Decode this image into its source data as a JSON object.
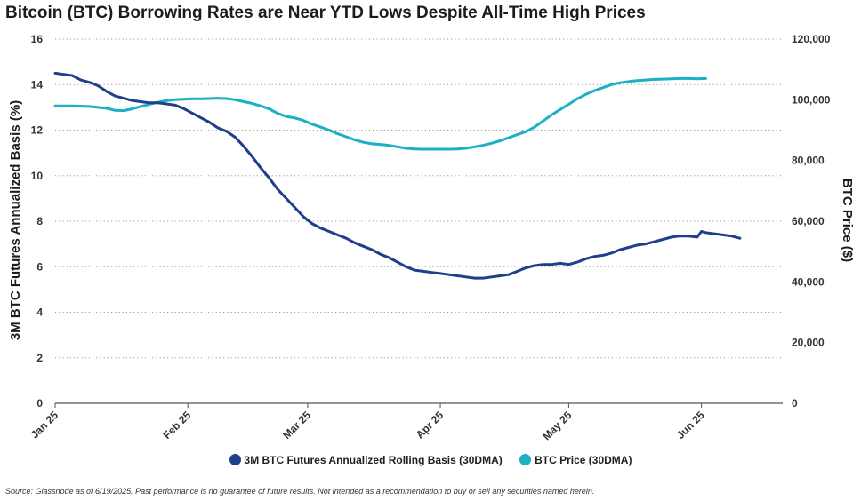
{
  "title": "Bitcoin (BTC) Borrowing Rates are Near YTD Lows Despite All-Time High Prices",
  "source": "Source: Glassnode as of 6/19/2025. Past performance is no guarantee of future results. Not intended as a recommendation to buy or sell any securities named herein.",
  "colors": {
    "basis": "#1f3f8a",
    "price": "#1bb0c4",
    "grid": "#9a9a9a",
    "axis": "#555555"
  },
  "chart_data": {
    "type": "line",
    "title": "Bitcoin (BTC) Borrowing Rates are Near YTD Lows Despite All-Time High Prices",
    "ylabel": "3M BTC Futures Annualized Basis (%)",
    "y2label": "BTC Price ($)",
    "ylim": [
      0,
      16
    ],
    "y2lim": [
      0,
      120000
    ],
    "yticks": [
      "0",
      "2",
      "4",
      "6",
      "8",
      "10",
      "12",
      "14",
      "16"
    ],
    "y2ticks": [
      "0",
      "20,000",
      "40,000",
      "60,000",
      "80,000",
      "100,000",
      "120,000"
    ],
    "xticks": [
      "Jan 25",
      "Feb 25",
      "Mar 25",
      "Apr 25",
      "May 25",
      "Jun 25"
    ],
    "x_range_days": [
      0,
      170
    ],
    "grid": "horizontal dotted",
    "legend_position": "bottom",
    "series": [
      {
        "name": "3M BTC Futures Annualized Rolling Basis (30DMA)",
        "axis": "left",
        "points": [
          [
            0,
            14.5
          ],
          [
            2,
            14.45
          ],
          [
            4,
            14.4
          ],
          [
            6,
            14.2
          ],
          [
            8,
            14.1
          ],
          [
            10,
            13.95
          ],
          [
            12,
            13.7
          ],
          [
            14,
            13.5
          ],
          [
            16,
            13.4
          ],
          [
            18,
            13.3
          ],
          [
            20,
            13.25
          ],
          [
            22,
            13.2
          ],
          [
            24,
            13.2
          ],
          [
            26,
            13.15
          ],
          [
            28,
            13.1
          ],
          [
            30,
            12.95
          ],
          [
            32,
            12.75
          ],
          [
            34,
            12.55
          ],
          [
            36,
            12.35
          ],
          [
            38,
            12.1
          ],
          [
            40,
            11.95
          ],
          [
            42,
            11.7
          ],
          [
            44,
            11.3
          ],
          [
            46,
            10.85
          ],
          [
            48,
            10.35
          ],
          [
            50,
            9.9
          ],
          [
            52,
            9.4
          ],
          [
            54,
            9.0
          ],
          [
            56,
            8.6
          ],
          [
            58,
            8.2
          ],
          [
            60,
            7.9
          ],
          [
            62,
            7.7
          ],
          [
            64,
            7.55
          ],
          [
            66,
            7.4
          ],
          [
            68,
            7.25
          ],
          [
            70,
            7.05
          ],
          [
            72,
            6.9
          ],
          [
            74,
            6.75
          ],
          [
            76,
            6.55
          ],
          [
            78,
            6.4
          ],
          [
            80,
            6.2
          ],
          [
            82,
            6.0
          ],
          [
            84,
            5.85
          ],
          [
            86,
            5.8
          ],
          [
            88,
            5.75
          ],
          [
            90,
            5.7
          ],
          [
            92,
            5.65
          ],
          [
            94,
            5.6
          ],
          [
            96,
            5.55
          ],
          [
            98,
            5.5
          ],
          [
            100,
            5.5
          ],
          [
            102,
            5.55
          ],
          [
            104,
            5.6
          ],
          [
            106,
            5.65
          ],
          [
            108,
            5.8
          ],
          [
            110,
            5.95
          ],
          [
            112,
            6.05
          ],
          [
            114,
            6.1
          ],
          [
            116,
            6.1
          ],
          [
            118,
            6.15
          ],
          [
            120,
            6.1
          ],
          [
            122,
            6.2
          ],
          [
            124,
            6.35
          ],
          [
            126,
            6.45
          ],
          [
            128,
            6.5
          ],
          [
            130,
            6.6
          ],
          [
            132,
            6.75
          ],
          [
            134,
            6.85
          ],
          [
            136,
            6.95
          ],
          [
            138,
            7.0
          ],
          [
            140,
            7.1
          ],
          [
            142,
            7.2
          ],
          [
            144,
            7.3
          ],
          [
            146,
            7.35
          ],
          [
            148,
            7.35
          ],
          [
            150,
            7.3
          ],
          [
            151,
            7.55
          ],
          [
            152,
            7.5
          ],
          [
            154,
            7.45
          ],
          [
            156,
            7.4
          ],
          [
            158,
            7.35
          ],
          [
            160,
            7.25
          ]
        ]
      },
      {
        "name": "BTC Price (30DMA)",
        "axis": "right",
        "points": [
          [
            0,
            98000
          ],
          [
            4,
            98000
          ],
          [
            8,
            97800
          ],
          [
            12,
            97200
          ],
          [
            14,
            96500
          ],
          [
            16,
            96400
          ],
          [
            18,
            97000
          ],
          [
            20,
            97800
          ],
          [
            22,
            98500
          ],
          [
            24,
            99200
          ],
          [
            26,
            99700
          ],
          [
            28,
            100000
          ],
          [
            30,
            100200
          ],
          [
            32,
            100300
          ],
          [
            34,
            100300
          ],
          [
            36,
            100400
          ],
          [
            38,
            100500
          ],
          [
            40,
            100400
          ],
          [
            42,
            100000
          ],
          [
            44,
            99400
          ],
          [
            46,
            98800
          ],
          [
            48,
            98000
          ],
          [
            50,
            97000
          ],
          [
            52,
            95500
          ],
          [
            54,
            94500
          ],
          [
            56,
            94000
          ],
          [
            58,
            93200
          ],
          [
            60,
            92000
          ],
          [
            62,
            91000
          ],
          [
            64,
            90000
          ],
          [
            66,
            88800
          ],
          [
            68,
            87800
          ],
          [
            70,
            86800
          ],
          [
            72,
            86000
          ],
          [
            74,
            85500
          ],
          [
            76,
            85300
          ],
          [
            78,
            85000
          ],
          [
            80,
            84500
          ],
          [
            82,
            84000
          ],
          [
            84,
            83800
          ],
          [
            86,
            83700
          ],
          [
            88,
            83700
          ],
          [
            90,
            83700
          ],
          [
            92,
            83700
          ],
          [
            94,
            83800
          ],
          [
            96,
            84000
          ],
          [
            98,
            84500
          ],
          [
            100,
            85000
          ],
          [
            102,
            85700
          ],
          [
            104,
            86500
          ],
          [
            106,
            87500
          ],
          [
            108,
            88500
          ],
          [
            110,
            89500
          ],
          [
            112,
            91000
          ],
          [
            114,
            93000
          ],
          [
            116,
            95000
          ],
          [
            118,
            96800
          ],
          [
            120,
            98500
          ],
          [
            122,
            100300
          ],
          [
            124,
            101800
          ],
          [
            126,
            103000
          ],
          [
            128,
            104000
          ],
          [
            130,
            105000
          ],
          [
            132,
            105600
          ],
          [
            134,
            106000
          ],
          [
            136,
            106300
          ],
          [
            138,
            106500
          ],
          [
            140,
            106700
          ],
          [
            142,
            106800
          ],
          [
            144,
            106900
          ],
          [
            146,
            107000
          ],
          [
            148,
            107000
          ],
          [
            150,
            106900
          ],
          [
            152,
            107000
          ]
        ]
      }
    ]
  },
  "legend": {
    "basis_label": "3M BTC Futures Annualized Rolling Basis (30DMA)",
    "price_label": "BTC Price (30DMA)"
  }
}
